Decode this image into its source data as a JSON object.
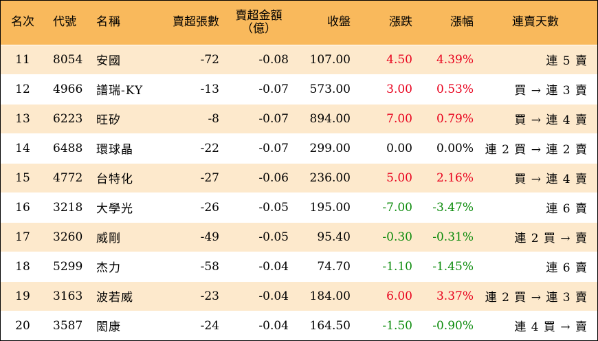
{
  "columns": {
    "rank": "名次",
    "code": "代號",
    "name": "名稱",
    "net_sell_lots": "賣超張數",
    "net_sell_amount_line1": "賣超金額",
    "net_sell_amount_line2": "（億）",
    "close": "收盤",
    "change": "漲跌",
    "change_pct": "漲幅",
    "streak": "連賣天數"
  },
  "colors": {
    "header_bg": "#f9b95c",
    "stripe_bg": "#fde9cc",
    "up": "#e8001c",
    "down": "#0a8a0a"
  },
  "rows": [
    {
      "rank": "11",
      "code": "8054",
      "name": "安國",
      "lots": "-72",
      "amount": "-0.08",
      "close": "107.00",
      "change": "4.50",
      "pct": "4.39%",
      "dir": "up",
      "streak": "連 5 賣"
    },
    {
      "rank": "12",
      "code": "4966",
      "name": "譜瑞-KY",
      "lots": "-13",
      "amount": "-0.07",
      "close": "573.00",
      "change": "3.00",
      "pct": "0.53%",
      "dir": "up",
      "streak": "買 → 連 3 賣"
    },
    {
      "rank": "13",
      "code": "6223",
      "name": "旺矽",
      "lots": "-8",
      "amount": "-0.07",
      "close": "894.00",
      "change": "7.00",
      "pct": "0.79%",
      "dir": "up",
      "streak": "買 → 連 4 賣"
    },
    {
      "rank": "14",
      "code": "6488",
      "name": "環球晶",
      "lots": "-22",
      "amount": "-0.07",
      "close": "299.00",
      "change": "0.00",
      "pct": "0.00%",
      "dir": "flat",
      "streak": "連 2 買 → 連 2 賣"
    },
    {
      "rank": "15",
      "code": "4772",
      "name": "台特化",
      "lots": "-27",
      "amount": "-0.06",
      "close": "236.00",
      "change": "5.00",
      "pct": "2.16%",
      "dir": "up",
      "streak": "買 → 連 4 賣"
    },
    {
      "rank": "16",
      "code": "3218",
      "name": "大學光",
      "lots": "-26",
      "amount": "-0.05",
      "close": "195.00",
      "change": "-7.00",
      "pct": "-3.47%",
      "dir": "down",
      "streak": "連 6 賣"
    },
    {
      "rank": "17",
      "code": "3260",
      "name": "威剛",
      "lots": "-49",
      "amount": "-0.05",
      "close": "95.40",
      "change": "-0.30",
      "pct": "-0.31%",
      "dir": "down",
      "streak": "連 2 買 → 賣"
    },
    {
      "rank": "18",
      "code": "5299",
      "name": "杰力",
      "lots": "-58",
      "amount": "-0.04",
      "close": "74.70",
      "change": "-1.10",
      "pct": "-1.45%",
      "dir": "down",
      "streak": "連 6 賣"
    },
    {
      "rank": "19",
      "code": "3163",
      "name": "波若威",
      "lots": "-23",
      "amount": "-0.04",
      "close": "184.00",
      "change": "6.00",
      "pct": "3.37%",
      "dir": "up",
      "streak": "連 2 買 → 連 3 賣"
    },
    {
      "rank": "20",
      "code": "3587",
      "name": "閎康",
      "lots": "-24",
      "amount": "-0.04",
      "close": "164.50",
      "change": "-1.50",
      "pct": "-0.90%",
      "dir": "down",
      "streak": "連 4 買 → 賣"
    }
  ]
}
